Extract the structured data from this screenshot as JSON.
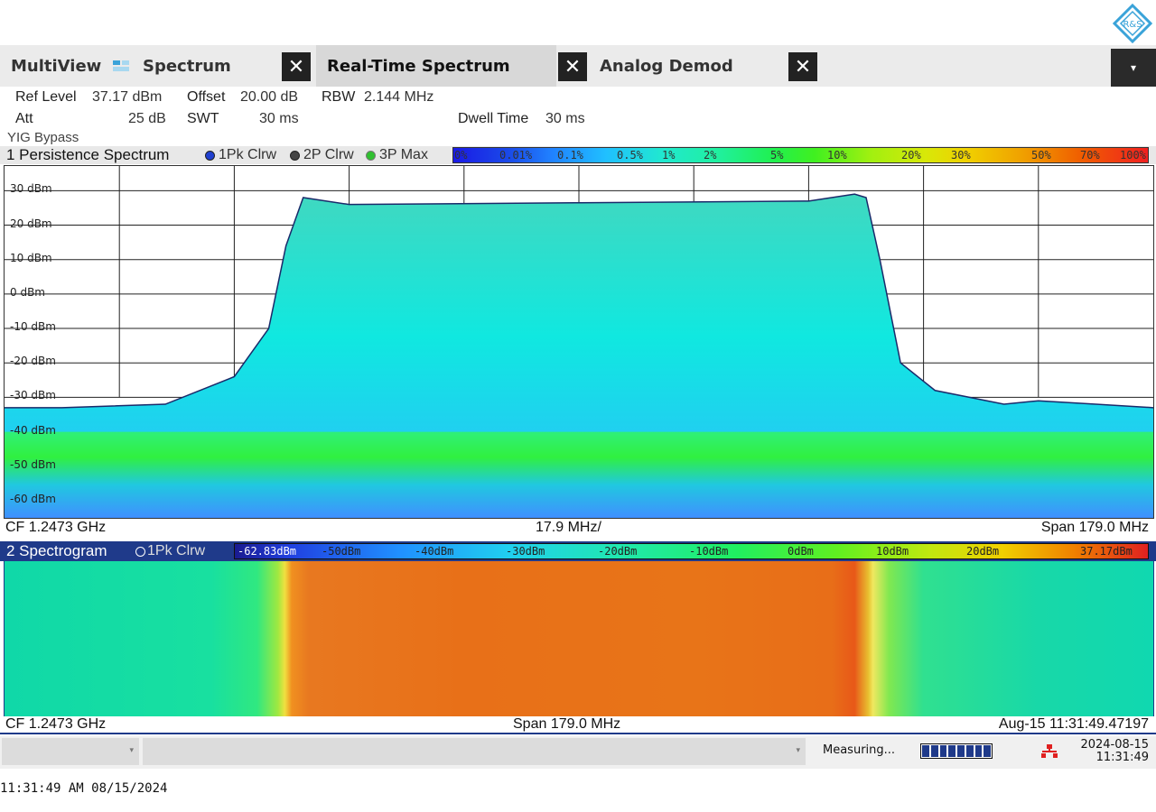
{
  "logo": {
    "text": "R&S"
  },
  "tabs": [
    {
      "label": "MultiView"
    },
    {
      "label": "Spectrum"
    },
    {
      "label": "Real-Time Spectrum"
    },
    {
      "label": "Analog Demod"
    }
  ],
  "tab_close_symbol": "✕",
  "dropdown_symbol": "▾",
  "settings": {
    "ref_level_label": "Ref Level",
    "ref_level_value": "37.17 dBm",
    "offset_label": "Offset",
    "offset_value": "20.00 dB",
    "rbw_label": "RBW",
    "rbw_value": "2.144 MHz",
    "att_label": "Att",
    "att_value": "25 dB",
    "swt_label": "SWT",
    "swt_value": "30 ms",
    "dwell_label": "Dwell Time",
    "dwell_value": "30 ms",
    "yig": "YIG Bypass"
  },
  "window1": {
    "title": "1 Persistence Spectrum",
    "traces": [
      "1Pk Clrw",
      "2P Clrw",
      "3P Max"
    ],
    "trace_colors": [
      "#2040d0",
      "#444444",
      "#30c030"
    ],
    "persistence_scale": [
      "0%",
      "0.01%",
      "0.1%",
      "0.5%",
      "1%",
      "2%",
      "5%",
      "10%",
      "20%",
      "30%",
      "50%",
      "70%",
      "100%"
    ],
    "footer_left": "CF 1.2473 GHz",
    "footer_center": "17.9 MHz/",
    "footer_right": "Span 179.0 MHz"
  },
  "window2": {
    "title": "2 Spectrogram",
    "trace": "1Pk Clrw",
    "scale": [
      "-62.83dBm",
      "-50dBm",
      "-40dBm",
      "-30dBm",
      "-20dBm",
      "-10dBm",
      "0dBm",
      "10dBm",
      "20dBm",
      "37.17dBm"
    ],
    "footer_left": "CF 1.2473 GHz",
    "footer_center": "Span 179.0 MHz",
    "footer_right": "Aug-15 11:31:49.47197"
  },
  "chart_data": {
    "type": "line",
    "title": "1 Persistence Spectrum",
    "xlabel": "Frequency (CF 1.2473 GHz, Span 179.0 MHz)",
    "ylabel": "dBm",
    "ylim": [
      -65,
      37.17
    ],
    "yticks": [
      "30 dBm",
      "20 dBm",
      "10 dBm",
      "0 dBm",
      "-10 dBm",
      "-20 dBm",
      "-30 dBm",
      "-40 dBm",
      "-50 dBm",
      "-60 dBm"
    ],
    "ytick_values": [
      30,
      20,
      10,
      0,
      -10,
      -20,
      -30,
      -40,
      -50,
      -60
    ],
    "x_divisions": 10,
    "series": [
      {
        "name": "1Pk Clrw",
        "x_fraction": [
          0,
          0.05,
          0.14,
          0.2,
          0.23,
          0.245,
          0.26,
          0.3,
          0.5,
          0.7,
          0.74,
          0.75,
          0.762,
          0.78,
          0.81,
          0.87,
          0.9,
          0.95,
          1.0
        ],
        "values": [
          -33,
          -33,
          -32,
          -24,
          -10,
          14,
          28,
          26,
          26.5,
          27,
          29,
          28,
          10,
          -20,
          -28,
          -32,
          -31,
          -32,
          -33
        ]
      }
    ]
  },
  "status": {
    "measuring": "Measuring...",
    "date": "2024-08-15",
    "time": "11:31:49"
  },
  "bottom_stamp": "11:31:49 AM  08/15/2024"
}
